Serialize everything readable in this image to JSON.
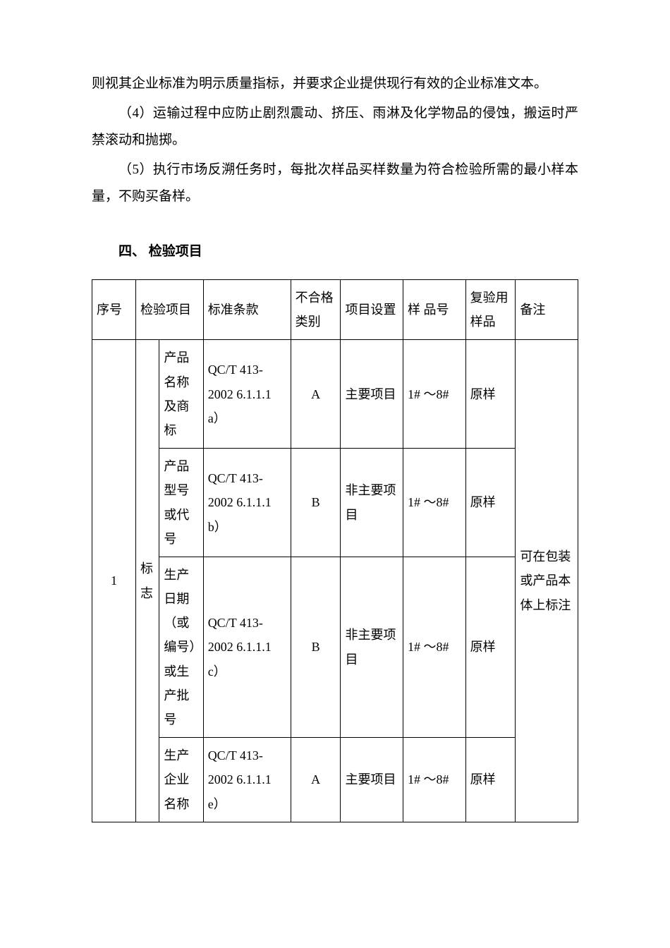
{
  "paragraphs": {
    "p1": "则视其企业标准为明示质量指标，并要求企业提供现行有效的企业标准文本。",
    "p2": "（4）运输过程中应防止剧烈震动、挤压、雨淋及化学物品的侵蚀，搬运时严禁滚动和抛掷。",
    "p3": "（5）执行市场反溯任务时，每批次样品买样数量为符合检验所需的最小样本量，不购买备样。"
  },
  "section_heading": "四、 检验项目",
  "table": {
    "headers": {
      "seq": "序号",
      "item": "检验项目",
      "std": "标准条款",
      "fail_class": "不合格类别",
      "proj_set": "项目设置",
      "sample_no": "样 品号",
      "verify_sample": "复验用样品",
      "note": "备注"
    },
    "rows": [
      {
        "seq": "1",
        "item": "标志",
        "subitem": "产品名称及商标",
        "std": "QC/T 413-2002 6.1.1.1 a）",
        "fail_class": "A",
        "proj_set": "主要项目",
        "sample_no": "1# ～8#",
        "verify_sample": "原样",
        "note": "可在包装或产品本体上标注"
      },
      {
        "subitem": "产品型号或代号",
        "std": "QC/T 413-2002 6.1.1.1 b）",
        "fail_class": "B",
        "proj_set": "非主要项目",
        "sample_no": "1# ～8#",
        "verify_sample": "原样"
      },
      {
        "subitem": "生产日期（或编号）或生产批号",
        "std": "QC/T 413-2002 6.1.1.1 c）",
        "fail_class": "B",
        "proj_set": "非主要项目",
        "sample_no": "1# ～8#",
        "verify_sample": "原样"
      },
      {
        "subitem": "生产企业名称",
        "std": "QC/T 413-2002 6.1.1.1 e）",
        "fail_class": "A",
        "proj_set": "主要项目",
        "sample_no": "1# ～8#",
        "verify_sample": "原样"
      }
    ]
  }
}
